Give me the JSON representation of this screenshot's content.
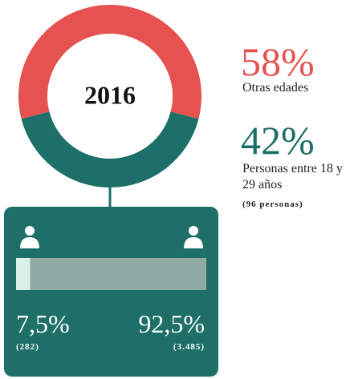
{
  "chart_data": [
    {
      "type": "donut",
      "title": "2016",
      "categories": [
        "Otras edades",
        "Personas entre 18 y 29 años"
      ],
      "values": [
        58,
        42
      ],
      "value_labels": [
        "58%",
        "42%"
      ],
      "colors": [
        "#e5524f",
        "#1d6f68"
      ],
      "annotation": "(96 personas)"
    },
    {
      "type": "bar",
      "values": [
        7.5,
        92.5
      ],
      "value_labels": [
        "7,5%",
        "92,5%"
      ],
      "count_labels": [
        "(282)",
        "(3.485)"
      ],
      "colors": [
        "#dcefe9",
        "#8fa9a3"
      ]
    }
  ]
}
